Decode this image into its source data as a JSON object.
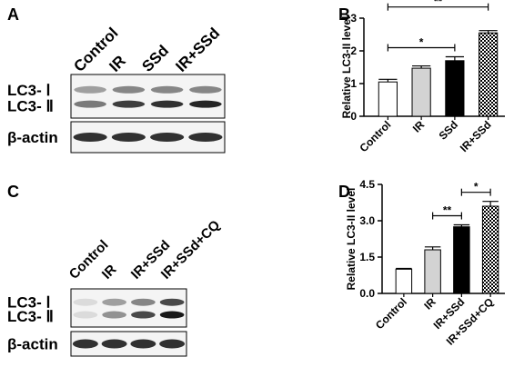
{
  "panels": {
    "A": "A",
    "B": "B",
    "C": "C",
    "D": "D"
  },
  "blots": [
    {
      "lanes": [
        "Control",
        "IR",
        "SSd",
        "IR+SSd"
      ],
      "bands": [
        "LC3- Ⅰ",
        "LC3- Ⅱ"
      ],
      "loading": "β-actin"
    },
    {
      "lanes": [
        "Control",
        "IR",
        "IR+SSd",
        "IR+SSd+CQ"
      ],
      "bands": [
        "LC3- Ⅰ",
        "LC3- Ⅱ"
      ],
      "loading": "β-actin"
    }
  ],
  "chart_data": [
    {
      "type": "bar",
      "y_label": "Relative LC3-II level",
      "categories": [
        "Control",
        "IR",
        "SSd",
        "IR+SSd"
      ],
      "values": [
        1.05,
        1.47,
        1.7,
        2.55
      ],
      "errors": [
        0.08,
        0.07,
        0.12,
        0.07
      ],
      "fills": [
        "white",
        "lightgray",
        "black",
        "checker"
      ],
      "ylim": [
        0,
        3
      ],
      "yticks": [
        0,
        1,
        2,
        3
      ],
      "significance": [
        {
          "between": [
            "Control",
            "SSd"
          ],
          "label": "*"
        },
        {
          "between": [
            "Control",
            "IR+SSd"
          ],
          "label": "**"
        }
      ]
    },
    {
      "type": "bar",
      "y_label": "Relative LC3-II level",
      "categories": [
        "Control",
        "IR",
        "IR+SSd",
        "IR+SSd+CQ"
      ],
      "values": [
        1.0,
        1.8,
        2.75,
        3.6
      ],
      "errors": [
        0.03,
        0.12,
        0.08,
        0.2
      ],
      "fills": [
        "white",
        "lightgray",
        "black",
        "checker"
      ],
      "ylim": [
        0,
        4.5
      ],
      "yticks": [
        {
          "value": 0,
          "label": "0.0"
        },
        {
          "value": 1.5,
          "label": "1.5"
        },
        {
          "value": 3,
          "label": "3.0"
        },
        {
          "value": 4.5,
          "label": "4.5"
        }
      ],
      "significance": [
        {
          "between": [
            "IR",
            "IR+SSd"
          ],
          "label": "**"
        },
        {
          "between": [
            "IR+SSd",
            "IR+SSd+CQ"
          ],
          "label": "*"
        }
      ]
    }
  ]
}
